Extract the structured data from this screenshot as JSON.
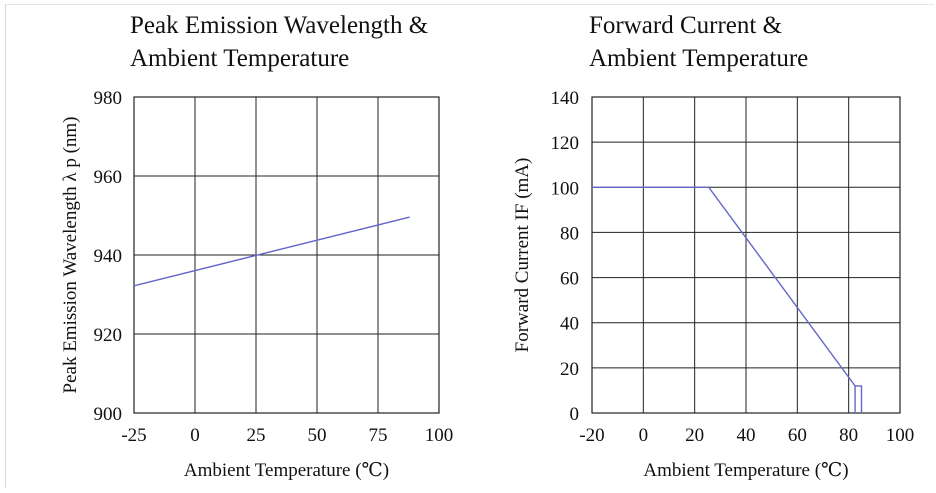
{
  "chart_data": [
    {
      "type": "line",
      "title": [
        "Peak Emission Wavelength &",
        "Ambient Temperature"
      ],
      "xlabel": "Ambient Temperature (℃)",
      "ylabel": "Peak Emission Wavelength λ p (nm)",
      "xlim": [
        -25,
        100
      ],
      "ylim": [
        900,
        980
      ],
      "xticks": [
        -25,
        0,
        25,
        50,
        75,
        100
      ],
      "xtick_labels": [
        "-25",
        "0",
        "25",
        "50",
        "75",
        "100"
      ],
      "yticks": [
        900,
        920,
        940,
        960,
        980
      ],
      "ytick_labels": [
        "900",
        "920",
        "940",
        "960",
        "980"
      ],
      "grid": true,
      "line_color": "#6666cc",
      "series": [
        {
          "x": [
            -25,
            88
          ],
          "y": [
            932.2,
            949.6
          ]
        }
      ]
    },
    {
      "type": "line",
      "title": [
        "Forward Current &",
        "Ambient Temperature"
      ],
      "xlabel": "Ambient Temperature (℃)",
      "ylabel": "Forward Current IF (mA)",
      "xlim": [
        -20,
        100
      ],
      "ylim": [
        0,
        140
      ],
      "xticks": [
        -20,
        0,
        20,
        40,
        60,
        80,
        100
      ],
      "xtick_labels": [
        "-20",
        "0",
        "20",
        "40",
        "60",
        "80",
        "100"
      ],
      "yticks": [
        0,
        20,
        40,
        60,
        80,
        100,
        120,
        140
      ],
      "ytick_labels": [
        "0",
        "20",
        "40",
        "60",
        "80",
        "100",
        "120",
        "140"
      ],
      "grid": true,
      "line_color": "#6666cc",
      "series": [
        {
          "x": [
            -20,
            25.5,
            82.5,
            85,
            85
          ],
          "y": [
            100,
            100,
            12,
            12,
            0
          ]
        },
        {
          "x": [
            82.5,
            82.5
          ],
          "y": [
            12,
            0
          ]
        }
      ]
    }
  ]
}
